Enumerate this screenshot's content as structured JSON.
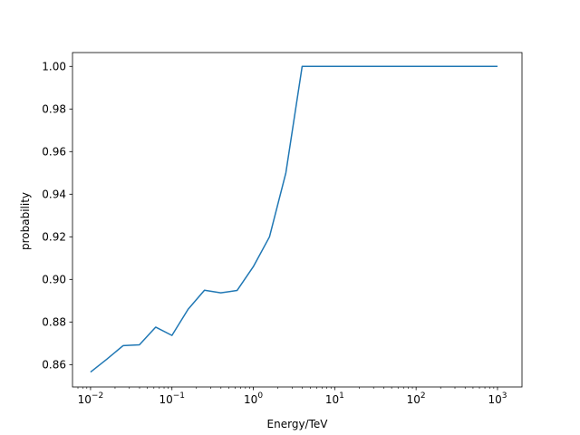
{
  "chart_data": {
    "type": "line",
    "xlabel": "Energy/TeV",
    "ylabel": "probability",
    "xscale": "log",
    "xlim": [
      0.006,
      2000
    ],
    "ylim": [
      0.8495,
      1.0065
    ],
    "x_ticks": [
      {
        "value": 0.01,
        "base": "10",
        "exp": "−2"
      },
      {
        "value": 0.1,
        "base": "10",
        "exp": "−1"
      },
      {
        "value": 1,
        "base": "10",
        "exp": "0"
      },
      {
        "value": 10,
        "base": "10",
        "exp": "1"
      },
      {
        "value": 100,
        "base": "10",
        "exp": "2"
      },
      {
        "value": 1000,
        "base": "10",
        "exp": "3"
      }
    ],
    "y_ticks": [
      {
        "value": 0.86,
        "label": "0.86"
      },
      {
        "value": 0.88,
        "label": "0.88"
      },
      {
        "value": 0.9,
        "label": "0.90"
      },
      {
        "value": 0.92,
        "label": "0.92"
      },
      {
        "value": 0.94,
        "label": "0.94"
      },
      {
        "value": 0.96,
        "label": "0.96"
      },
      {
        "value": 0.98,
        "label": "0.98"
      },
      {
        "value": 1.0,
        "label": "1.00"
      }
    ],
    "grid": false,
    "series": [
      {
        "color": "#1f77b4",
        "x": [
          0.01,
          0.0158,
          0.0251,
          0.0398,
          0.0631,
          0.1,
          0.158,
          0.251,
          0.398,
          0.631,
          1.0,
          1.58,
          2.51,
          3.98,
          6.31,
          10,
          100,
          1000
        ],
        "y": [
          0.8565,
          0.8625,
          0.8689,
          0.8693,
          0.8776,
          0.8737,
          0.886,
          0.8949,
          0.8937,
          0.8948,
          0.906,
          0.92,
          0.95,
          1.0,
          1.0,
          1.0,
          1.0,
          1.0
        ]
      }
    ]
  }
}
